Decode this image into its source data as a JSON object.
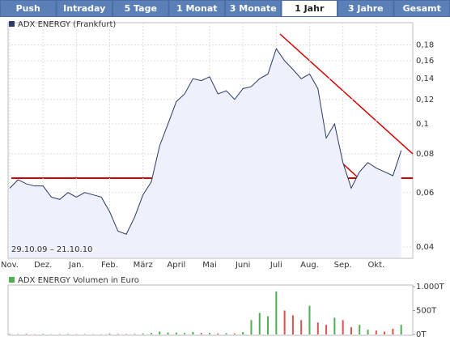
{
  "tabs": [
    "Push",
    "Intraday",
    "5 Tage",
    "1 Monat",
    "3 Monate",
    "1 Jahr",
    "3 Jahre",
    "Gesamt"
  ],
  "active_tab": "1 Jahr",
  "chart_data": [
    {
      "type": "line",
      "annotation": "29.10.09 – 21.10.10",
      "categories": [
        "Nov.",
        null,
        null,
        null,
        "Dez.",
        null,
        null,
        null,
        "Jan.",
        null,
        null,
        null,
        "Feb.",
        null,
        null,
        null,
        "März",
        null,
        null,
        null,
        "April",
        null,
        null,
        null,
        "Mai",
        null,
        null,
        null,
        "Juni",
        null,
        null,
        null,
        "Juli",
        null,
        null,
        null,
        "Aug.",
        null,
        null,
        null,
        "Sep.",
        null,
        null,
        null,
        "Okt.",
        null,
        null,
        null
      ],
      "series": [
        {
          "name": "ADX ENERGY (Frankfurt)",
          "color": "#2b3a67",
          "values": [
            0.062,
            0.066,
            0.064,
            0.063,
            0.063,
            0.058,
            0.057,
            0.06,
            0.058,
            0.06,
            0.059,
            0.058,
            0.052,
            0.045,
            0.044,
            0.05,
            0.059,
            0.065,
            0.085,
            0.1,
            0.118,
            0.125,
            0.14,
            0.138,
            0.142,
            0.125,
            0.128,
            0.12,
            0.13,
            0.132,
            0.14,
            0.145,
            0.175,
            0.16,
            0.15,
            0.14,
            0.145,
            0.13,
            0.09,
            0.1,
            0.075,
            0.062,
            0.07,
            0.075,
            0.072,
            0.07,
            0.068,
            0.082
          ]
        }
      ],
      "log_scale": true,
      "ylim": [
        0.037,
        0.2
      ],
      "yticks": [
        {
          "value": 0.04,
          "label": "0,04"
        },
        {
          "value": 0.06,
          "label": "0,06"
        },
        {
          "value": 0.08,
          "label": "0,08"
        },
        {
          "value": 0.1,
          "label": "0,1"
        },
        {
          "value": 0.12,
          "label": "0,12"
        },
        {
          "value": 0.14,
          "label": "0,14"
        },
        {
          "value": 0.16,
          "label": "0,16"
        },
        {
          "value": 0.18,
          "label": "0,18"
        }
      ],
      "grid": true,
      "fill_color": "#eef0fb"
    },
    {
      "type": "bar",
      "series": [
        {
          "name": "ADX ENERGY Volumen in Euro",
          "color": "#4caf50",
          "down_color": "#d9534f",
          "values": [
            10,
            8,
            12,
            6,
            9,
            5,
            7,
            10,
            6,
            8,
            5,
            7,
            15,
            10,
            8,
            12,
            20,
            30,
            60,
            40,
            40,
            30,
            50,
            30,
            30,
            20,
            25,
            20,
            50,
            300,
            450,
            380,
            900,
            500,
            400,
            300,
            600,
            250,
            200,
            350,
            300,
            150,
            200,
            100,
            80,
            60,
            120,
            200
          ]
        }
      ],
      "ylim": [
        0,
        1000
      ],
      "yticks": [
        {
          "value": 0,
          "label": "0T"
        },
        {
          "value": 500,
          "label": "500T"
        },
        {
          "value": 1000,
          "label": "1.000T"
        }
      ]
    }
  ]
}
